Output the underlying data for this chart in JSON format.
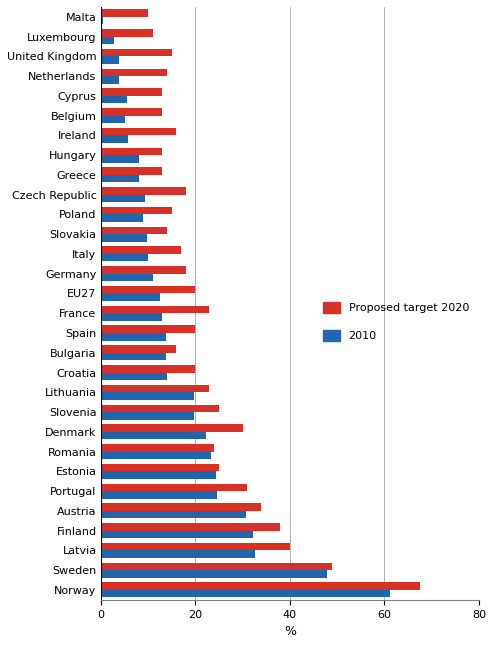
{
  "countries": [
    "Malta",
    "Luxembourg",
    "United Kingdom",
    "Netherlands",
    "Cyprus",
    "Belgium",
    "Ireland",
    "Hungary",
    "Greece",
    "Czech Republic",
    "Poland",
    "Slovakia",
    "Italy",
    "Germany",
    "EU27",
    "France",
    "Spain",
    "Bulgaria",
    "Croatia",
    "Lithuania",
    "Slovenia",
    "Denmark",
    "Romania",
    "Estonia",
    "Portugal",
    "Austria",
    "Finland",
    "Latvia",
    "Sweden",
    "Norway"
  ],
  "target_2020": [
    10,
    11,
    15,
    14,
    13,
    13,
    16,
    13,
    13,
    18,
    15,
    14,
    17,
    18,
    20,
    23,
    20,
    16,
    20,
    23,
    25,
    30,
    24,
    25,
    31,
    34,
    38,
    40,
    49,
    67.5
  ],
  "value_2010": [
    0.4,
    2.8,
    3.8,
    3.8,
    5.5,
    5.1,
    5.8,
    8.1,
    8.0,
    9.4,
    9.0,
    9.8,
    10.1,
    11.0,
    12.5,
    12.9,
    13.8,
    13.8,
    14.0,
    19.7,
    19.8,
    22.2,
    23.4,
    24.3,
    24.6,
    30.8,
    32.2,
    32.6,
    47.9,
    61.1
  ],
  "color_2020": "#d73027",
  "color_2010": "#2166ac",
  "bar_height": 0.38,
  "xlim": [
    0,
    80
  ],
  "xticks": [
    0,
    20,
    40,
    60,
    80
  ],
  "xlabel": "%",
  "legend_2020": "Proposed target 2020",
  "legend_2010": "2010",
  "grid_color": "#808080",
  "spine_color": "#808080"
}
